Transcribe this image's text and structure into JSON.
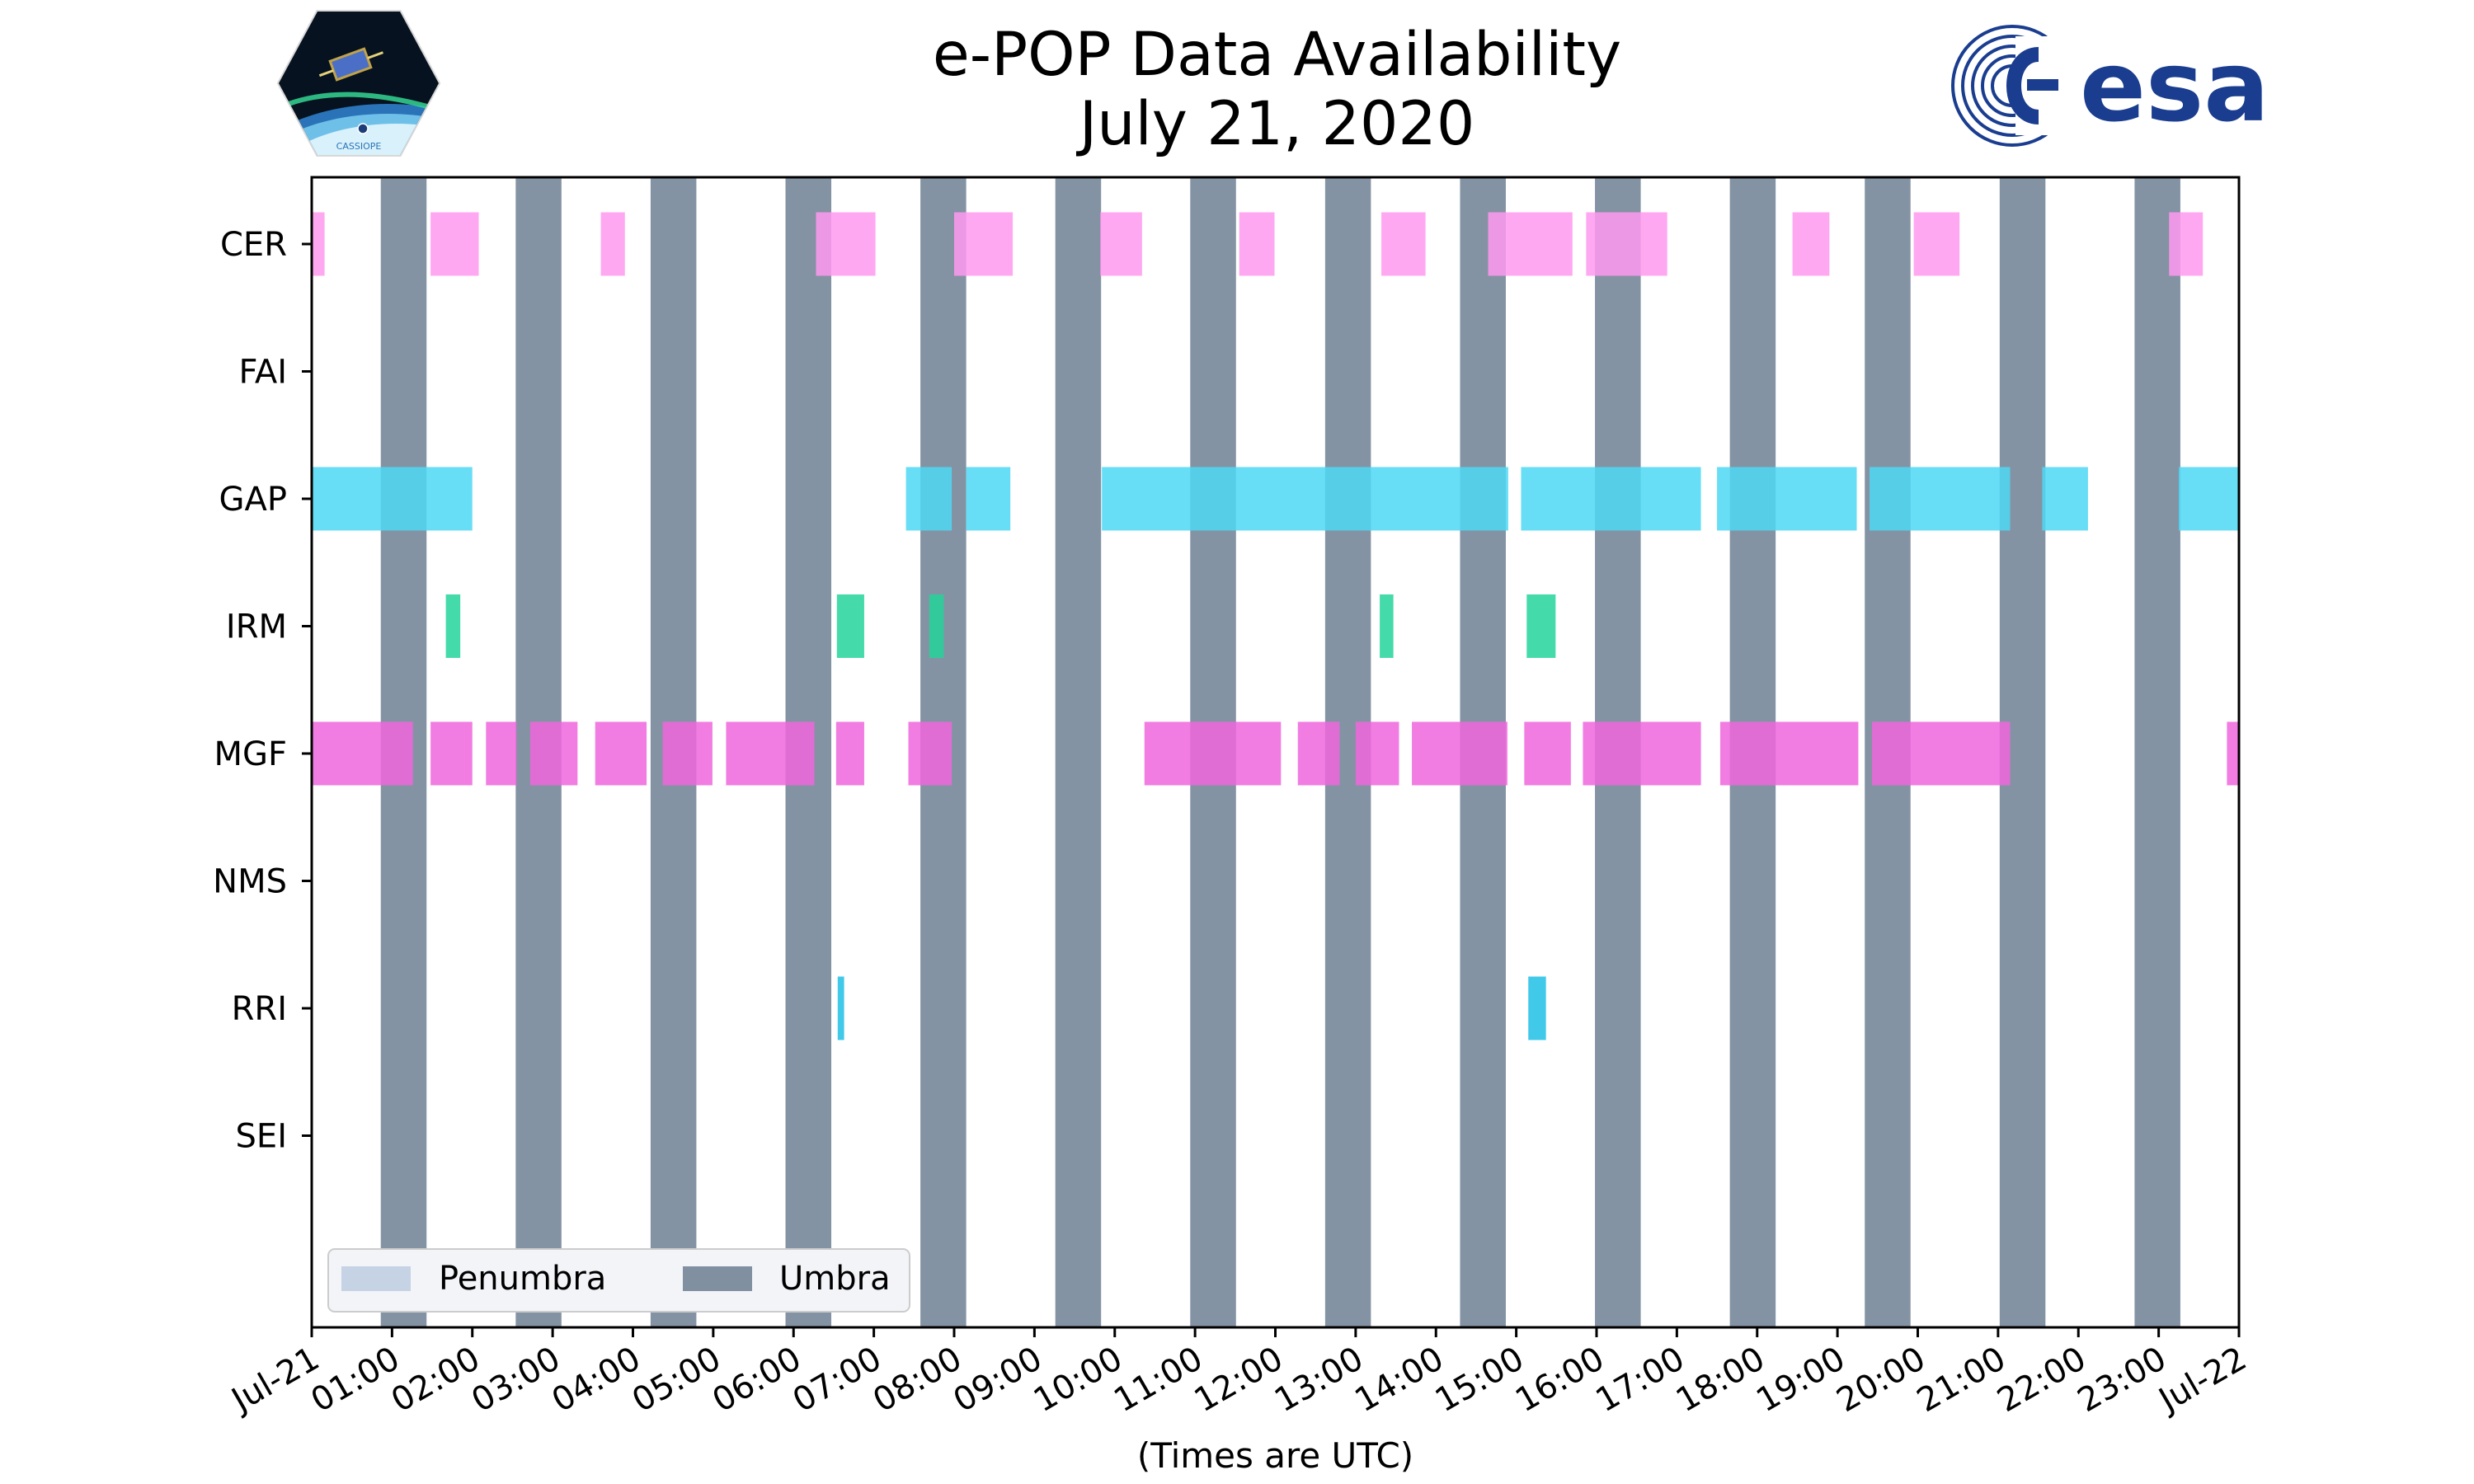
{
  "title": {
    "line1": "e-POP Data Availability",
    "line2": "July 21, 2020"
  },
  "logos": {
    "mission_logo": {
      "label": "CASSIOPE"
    },
    "agency_logo": {
      "label": "esa"
    }
  },
  "colors": {
    "CER": "#ff99f0",
    "GAP": "#4dd8f5",
    "IRM": "#25d49a",
    "MGF": "#ee66dd",
    "RRI": "#20bfe6",
    "umbra": "#4a6078",
    "penumbra": "#c5d3e5",
    "legend_bg": "#f2f4f8",
    "legend_border": "#cccccc"
  },
  "chart_data": {
    "type": "timeline",
    "title": "e-POP Data Availability July 21, 2020",
    "xlabel": "(Times are UTC)",
    "ylabel": "",
    "xlim_hours": [
      0,
      24
    ],
    "x_ticks": [
      "Jul-21",
      "01:00",
      "02:00",
      "03:00",
      "04:00",
      "05:00",
      "06:00",
      "07:00",
      "08:00",
      "09:00",
      "10:00",
      "11:00",
      "12:00",
      "13:00",
      "14:00",
      "15:00",
      "16:00",
      "17:00",
      "18:00",
      "19:00",
      "20:00",
      "21:00",
      "22:00",
      "23:00",
      "Jul-22"
    ],
    "instruments": [
      "CER",
      "FAI",
      "GAP",
      "IRM",
      "MGF",
      "NMS",
      "RRI",
      "SEI"
    ],
    "umbra_hours": [
      [
        0.86,
        1.43
      ],
      [
        2.54,
        3.11
      ],
      [
        4.22,
        4.79
      ],
      [
        5.9,
        6.47
      ],
      [
        7.58,
        8.15
      ],
      [
        9.26,
        9.83
      ],
      [
        10.94,
        11.51
      ],
      [
        12.62,
        13.19
      ],
      [
        14.3,
        14.87
      ],
      [
        15.98,
        16.55
      ],
      [
        17.66,
        18.23
      ],
      [
        19.34,
        19.91
      ],
      [
        21.02,
        21.59
      ],
      [
        22.7,
        23.27
      ]
    ],
    "penumbra_hours": [],
    "segments_hours": {
      "CER": [
        [
          0.0,
          0.16
        ],
        [
          1.48,
          2.08
        ],
        [
          3.6,
          3.9
        ],
        [
          6.28,
          7.02
        ],
        [
          8.0,
          8.73
        ],
        [
          9.82,
          10.34
        ],
        [
          11.55,
          11.99
        ],
        [
          13.32,
          13.87
        ],
        [
          14.65,
          15.7
        ],
        [
          15.87,
          16.88
        ],
        [
          18.44,
          18.9
        ],
        [
          19.95,
          20.52
        ],
        [
          23.13,
          23.55
        ]
      ],
      "FAI": [],
      "GAP": [
        [
          0.0,
          2.0
        ],
        [
          7.4,
          7.97
        ],
        [
          8.15,
          8.7
        ],
        [
          9.84,
          14.9
        ],
        [
          15.06,
          17.3
        ],
        [
          17.5,
          19.24
        ],
        [
          19.4,
          21.15
        ],
        [
          21.55,
          22.12
        ],
        [
          23.25,
          24.0
        ]
      ],
      "IRM": [
        [
          1.67,
          1.85
        ],
        [
          6.54,
          6.88
        ],
        [
          7.69,
          7.87
        ],
        [
          13.3,
          13.47
        ],
        [
          15.13,
          15.49
        ]
      ],
      "MGF": [
        [
          0.0,
          1.26
        ],
        [
          1.48,
          2.0
        ],
        [
          2.17,
          2.55
        ],
        [
          2.72,
          3.31
        ],
        [
          3.53,
          4.17
        ],
        [
          4.37,
          4.99
        ],
        [
          5.16,
          6.26
        ],
        [
          6.53,
          6.88
        ],
        [
          7.43,
          7.97
        ],
        [
          10.37,
          12.07
        ],
        [
          12.28,
          12.8
        ],
        [
          13.0,
          13.54
        ],
        [
          13.7,
          14.89
        ],
        [
          15.1,
          15.68
        ],
        [
          15.83,
          17.3
        ],
        [
          17.54,
          19.26
        ],
        [
          19.43,
          21.15
        ],
        [
          23.85,
          24.0
        ]
      ],
      "NMS": [],
      "RRI": [
        [
          6.55,
          6.63
        ],
        [
          15.15,
          15.37
        ]
      ],
      "SEI": []
    },
    "legend": {
      "placement": "lower-left",
      "entries": [
        "Penumbra",
        "Umbra"
      ]
    }
  }
}
